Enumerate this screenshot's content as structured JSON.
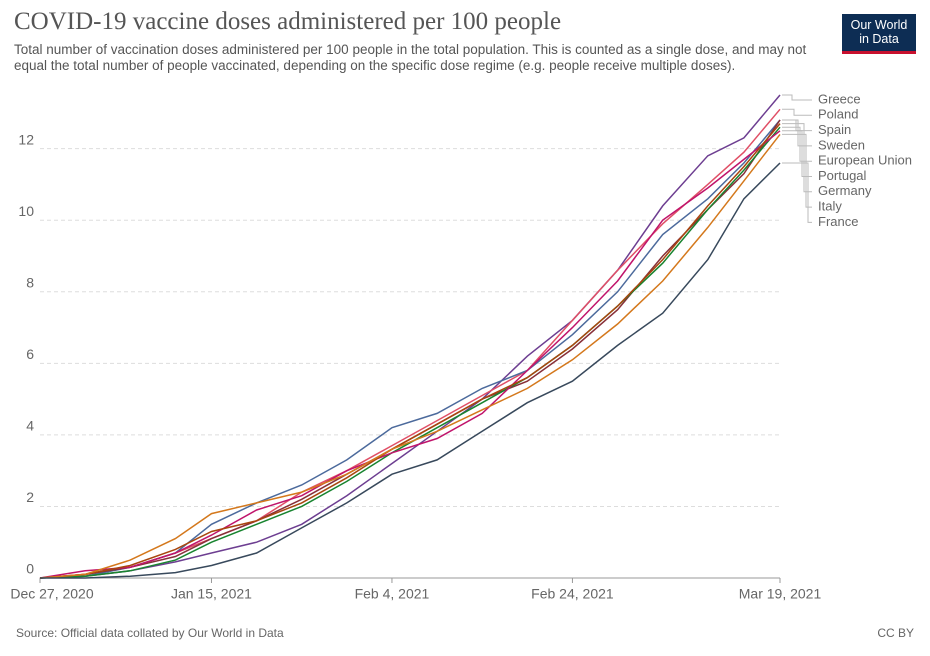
{
  "chart_data": {
    "type": "line",
    "title": "COVID-19 vaccine doses administered per 100 people",
    "subtitle": "Total number of vaccination doses administered per 100 people in the total population. This is counted as a single dose, and may not equal the total number of people vaccinated, depending on the specific dose regime (e.g. people receive multiple doses).",
    "logo": [
      "Our World",
      "in Data"
    ],
    "source": "Source: Official data collated by Our World in Data",
    "license": "CC BY",
    "x": [
      "2020-12-27",
      "2021-01-01",
      "2021-01-06",
      "2021-01-11",
      "2021-01-15",
      "2021-01-20",
      "2021-01-25",
      "2021-01-30",
      "2021-02-04",
      "2021-02-09",
      "2021-02-14",
      "2021-02-19",
      "2021-02-24",
      "2021-03-01",
      "2021-03-06",
      "2021-03-11",
      "2021-03-15",
      "2021-03-19"
    ],
    "xlim": [
      "2020-12-27",
      "2021-03-19"
    ],
    "xticks": [
      {
        "value": "2020-12-27",
        "label": "Dec 27, 2020"
      },
      {
        "value": "2021-01-15",
        "label": "Jan 15, 2021"
      },
      {
        "value": "2021-02-04",
        "label": "Feb 4, 2021"
      },
      {
        "value": "2021-02-24",
        "label": "Feb 24, 2021"
      },
      {
        "value": "2021-03-19",
        "label": "Mar 19, 2021"
      }
    ],
    "ylim": [
      0,
      13.5
    ],
    "yticks": [
      0,
      2,
      4,
      6,
      8,
      10,
      12
    ],
    "grid": true,
    "series": [
      {
        "name": "Greece",
        "color": "#6d3e91",
        "values": [
          0,
          0.05,
          0.2,
          0.45,
          0.7,
          1.0,
          1.5,
          2.3,
          3.2,
          4.1,
          5.0,
          6.2,
          7.2,
          8.6,
          10.4,
          11.8,
          12.3,
          13.5
        ]
      },
      {
        "name": "Poland",
        "color": "#e04f66",
        "values": [
          0,
          0.1,
          0.3,
          0.7,
          1.1,
          1.6,
          2.4,
          3.0,
          3.7,
          4.4,
          5.1,
          5.8,
          7.2,
          8.6,
          9.9,
          11.0,
          11.9,
          13.1
        ]
      },
      {
        "name": "Spain",
        "color": "#4c6a9c",
        "values": [
          0,
          0.05,
          0.3,
          0.7,
          1.5,
          2.1,
          2.6,
          3.3,
          4.2,
          4.6,
          5.3,
          5.8,
          6.8,
          8.0,
          9.6,
          10.6,
          11.6,
          12.8
        ]
      },
      {
        "name": "Sweden",
        "color": "#883039",
        "values": [
          0,
          0.1,
          0.3,
          0.6,
          1.1,
          1.6,
          2.2,
          2.9,
          3.6,
          4.3,
          5.0,
          5.5,
          6.4,
          7.5,
          9.0,
          10.3,
          11.3,
          12.8
        ]
      },
      {
        "name": "European Union",
        "color": "#18842f",
        "values": [
          0,
          0.05,
          0.2,
          0.5,
          1.0,
          1.5,
          2.0,
          2.7,
          3.5,
          4.2,
          4.9,
          5.6,
          6.5,
          7.6,
          8.8,
          10.3,
          11.4,
          12.6
        ]
      },
      {
        "name": "Portugal",
        "color": "#c0146b",
        "values": [
          0,
          0.2,
          0.3,
          0.7,
          1.2,
          1.9,
          2.3,
          3.0,
          3.5,
          3.9,
          4.6,
          5.8,
          7.0,
          8.3,
          10.0,
          10.9,
          11.7,
          12.5
        ]
      },
      {
        "name": "Germany",
        "color": "#a8460e",
        "values": [
          0,
          0.1,
          0.35,
          0.8,
          1.3,
          1.6,
          2.1,
          2.8,
          3.6,
          4.3,
          5.0,
          5.6,
          6.5,
          7.6,
          8.9,
          10.4,
          11.5,
          12.7
        ]
      },
      {
        "name": "Italy",
        "color": "#d4781c",
        "values": [
          0,
          0.1,
          0.5,
          1.1,
          1.8,
          2.1,
          2.4,
          2.9,
          3.6,
          4.1,
          4.7,
          5.3,
          6.1,
          7.1,
          8.3,
          9.8,
          11.1,
          12.4
        ]
      },
      {
        "name": "France",
        "color": "#38495c",
        "values": [
          0,
          0,
          0.05,
          0.15,
          0.35,
          0.7,
          1.4,
          2.1,
          2.9,
          3.3,
          4.1,
          4.9,
          5.5,
          6.5,
          7.4,
          8.9,
          10.6,
          11.6
        ]
      }
    ]
  }
}
